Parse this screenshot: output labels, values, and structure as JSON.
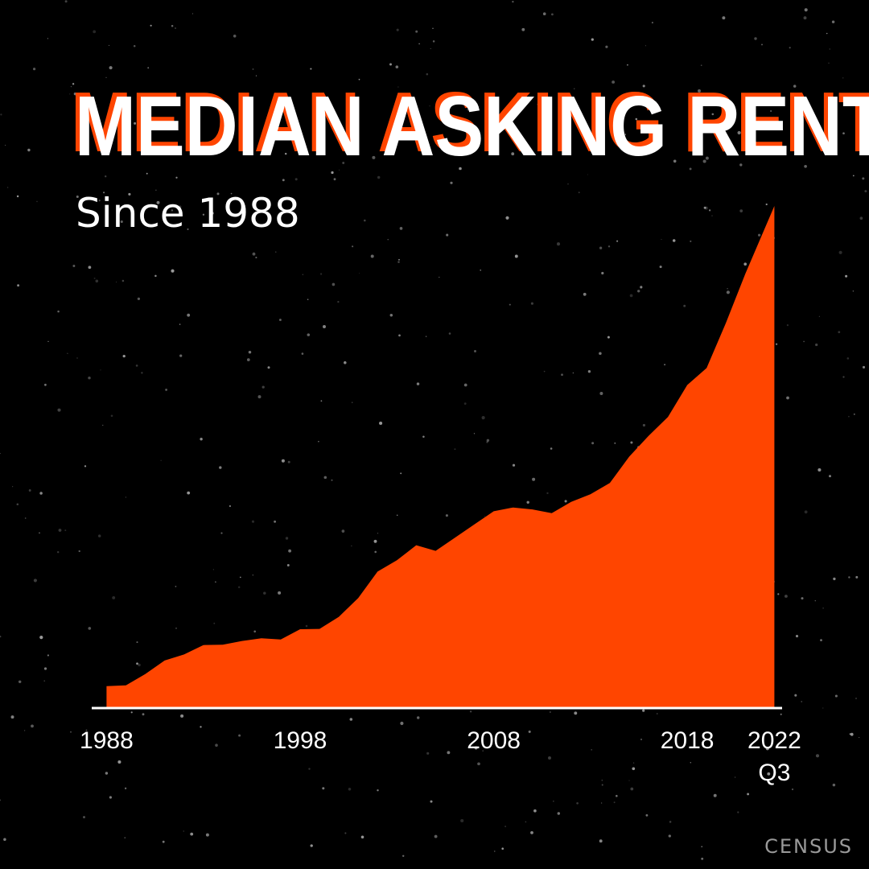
{
  "header": {
    "title": "MEDIAN ASKING RENT",
    "subtitle": "Since 1988"
  },
  "footer": {
    "source": "CENSUS"
  },
  "colors": {
    "background": "#000000",
    "area_fill": "#ff4500",
    "axis": "#ffffff",
    "text": "#ffffff",
    "title_shadow": "#ff4500",
    "source_text": "#9a9a9a"
  },
  "chart_data": {
    "type": "area",
    "title": "MEDIAN ASKING RENT",
    "subtitle": "Since 1988",
    "xlabel": "",
    "ylabel": "",
    "x_tick_labels": [
      {
        "x": 1988,
        "label": "1988",
        "sublabel": ""
      },
      {
        "x": 1998,
        "label": "1998",
        "sublabel": ""
      },
      {
        "x": 2008,
        "label": "2008",
        "sublabel": ""
      },
      {
        "x": 2018,
        "label": "2018",
        "sublabel": ""
      },
      {
        "x": 2022.5,
        "label": "2022",
        "sublabel": "Q3"
      }
    ],
    "xlim": [
      1987.4,
      2022.9
    ],
    "ylim": [
      0,
      1330
    ],
    "grid": false,
    "legend": "none",
    "series": [
      {
        "x": [
          1988,
          1989,
          1990,
          1991,
          1992,
          1993,
          1994,
          1995,
          1996,
          1997,
          1998,
          1999,
          2000,
          2001,
          2002,
          2003,
          2004,
          2005,
          2006,
          2007,
          2008,
          2009,
          2010,
          2011,
          2012,
          2013,
          2014,
          2015,
          2016,
          2017,
          2018,
          2019,
          2020,
          2021,
          2022.5
        ],
        "y": [
          56,
          58,
          88,
          124,
          140,
          165,
          166,
          176,
          183,
          180,
          207,
          208,
          240,
          290,
          360,
          390,
          430,
          415,
          450,
          485,
          520,
          530,
          525,
          515,
          545,
          565,
          595,
          665,
          720,
          770,
          855,
          900,
          1020,
          1150,
          1330
        ]
      }
    ]
  }
}
